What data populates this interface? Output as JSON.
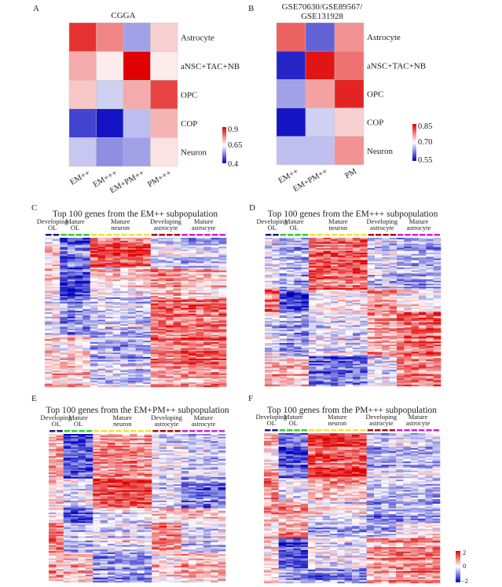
{
  "chart_data": [
    {
      "panel": "A",
      "type": "heatmap",
      "title": "CGGA",
      "rows": [
        "Astrocyte",
        "aNSC+TAC+NB",
        "OPC",
        "COP",
        "Neuron"
      ],
      "columns": [
        "EM++",
        "EM+++",
        "EM+PM++",
        "PM+++"
      ],
      "values": [
        [
          0.87,
          0.78,
          0.55,
          0.7
        ],
        [
          0.74,
          0.67,
          0.92,
          0.67
        ],
        [
          0.71,
          0.6,
          0.74,
          0.85
        ],
        [
          0.45,
          0.4,
          0.58,
          0.73
        ],
        [
          0.59,
          0.53,
          0.55,
          0.68
        ]
      ],
      "colorbar": {
        "min": 0.4,
        "mid": 0.65,
        "max": 0.9,
        "ticks": [
          "0.9",
          "0.65",
          "0.4"
        ]
      }
    },
    {
      "panel": "B",
      "type": "heatmap",
      "title_lines": [
        "GSE70630/GSE89567/",
        "GSE131928"
      ],
      "rows": [
        "Astrocyte",
        "aNSC+TAC+NB",
        "OPC",
        "COP",
        "Neuron"
      ],
      "columns": [
        "EM++",
        "EM+PM++",
        "PM"
      ],
      "values": [
        [
          0.8,
          0.6,
          0.77
        ],
        [
          0.56,
          0.85,
          0.79
        ],
        [
          0.64,
          0.76,
          0.84
        ],
        [
          0.55,
          0.67,
          0.73
        ],
        [
          0.66,
          0.66,
          0.77
        ]
      ],
      "colorbar": {
        "min": 0.55,
        "mid": 0.7,
        "max": 0.85,
        "ticks": [
          "0.85",
          "0.70",
          "0.55"
        ]
      }
    },
    {
      "panel": "C",
      "type": "heatmap",
      "title": "Top 100 genes from the EM++ subpopulation",
      "genes": 100,
      "cluster_rows": [
        20,
        20,
        25,
        20,
        15
      ],
      "cluster_means": [
        [
          0.2,
          -1.2,
          1.3,
          -0.3,
          -0.6
        ],
        [
          0.3,
          -1.5,
          0.2,
          0.8,
          0.4
        ],
        [
          -0.2,
          -0.8,
          -0.4,
          1.2,
          1.1
        ],
        [
          0.3,
          0.2,
          -0.6,
          1.0,
          1.2
        ],
        [
          0.5,
          0.3,
          -0.5,
          0.6,
          0.7
        ]
      ]
    },
    {
      "panel": "D",
      "type": "heatmap",
      "title": "Top 100 genes from the EM+++ subpopulation",
      "genes": 100,
      "cluster_rows": [
        35,
        15,
        30,
        20
      ],
      "cluster_means": [
        [
          -0.2,
          -0.6,
          1.3,
          -0.3,
          -0.6
        ],
        [
          1.2,
          -1.4,
          0.2,
          0.9,
          0.1
        ],
        [
          -0.3,
          -0.7,
          -0.2,
          0.8,
          1.2
        ],
        [
          0.6,
          0.6,
          -1.0,
          -0.2,
          1.0
        ]
      ]
    },
    {
      "panel": "E",
      "type": "heatmap",
      "title": "Top 100 genes from the EM+PM++ subpopulation",
      "genes": 100,
      "cluster_rows": [
        30,
        20,
        10,
        20,
        20
      ],
      "cluster_means": [
        [
          0.5,
          -1.4,
          0.8,
          -0.3,
          -0.5
        ],
        [
          0.2,
          -0.2,
          1.4,
          -0.3,
          -1.0
        ],
        [
          0.2,
          -1.4,
          -0.2,
          0.4,
          0.4
        ],
        [
          1.2,
          -0.5,
          -0.2,
          1.0,
          -0.4
        ],
        [
          0.6,
          0.4,
          -0.8,
          0.2,
          0.5
        ]
      ]
    },
    {
      "panel": "F",
      "type": "heatmap",
      "title": "Top 100 genes from the PM+++ subpopulation",
      "genes": 100,
      "cluster_rows": [
        30,
        15,
        15,
        10,
        20,
        10
      ],
      "cluster_means": [
        [
          0.4,
          -1.3,
          1.4,
          -0.6,
          -0.5
        ],
        [
          0.8,
          -0.3,
          0.5,
          -0.5,
          -0.6
        ],
        [
          0.6,
          0.7,
          -0.1,
          -0.9,
          -0.8
        ],
        [
          0.4,
          0.9,
          -0.6,
          -0.6,
          0.2
        ],
        [
          0.1,
          -1.4,
          -0.1,
          0.8,
          0.9
        ],
        [
          0.4,
          -0.6,
          -0.8,
          0.6,
          1.0
        ]
      ]
    }
  ],
  "cell_groups": [
    {
      "line1": "Developing",
      "line2": "OL",
      "columns": 2,
      "color": "#1a1a6e"
    },
    {
      "line1": "Mature",
      "line2": "OL",
      "columns": 4,
      "color": "#33cc33"
    },
    {
      "line1": "Mature",
      "line2": "neuron",
      "columns": 8,
      "color": "#f0e040"
    },
    {
      "line1": "Developing",
      "line2": "astrocyte",
      "columns": 4,
      "color": "#a01010"
    },
    {
      "line1": "Mature",
      "line2": "astrocyte",
      "columns": 6,
      "color": "#d020d0"
    }
  ],
  "expression_colorbar": {
    "min": -2,
    "mid": 0,
    "max": 2,
    "ticks": [
      "2",
      "0",
      "−2"
    ]
  },
  "colors": {
    "low": "#0000c0",
    "mid": "#ffffff",
    "high": "#e00000"
  },
  "letters": [
    "A",
    "B",
    "C",
    "D",
    "E",
    "F"
  ]
}
